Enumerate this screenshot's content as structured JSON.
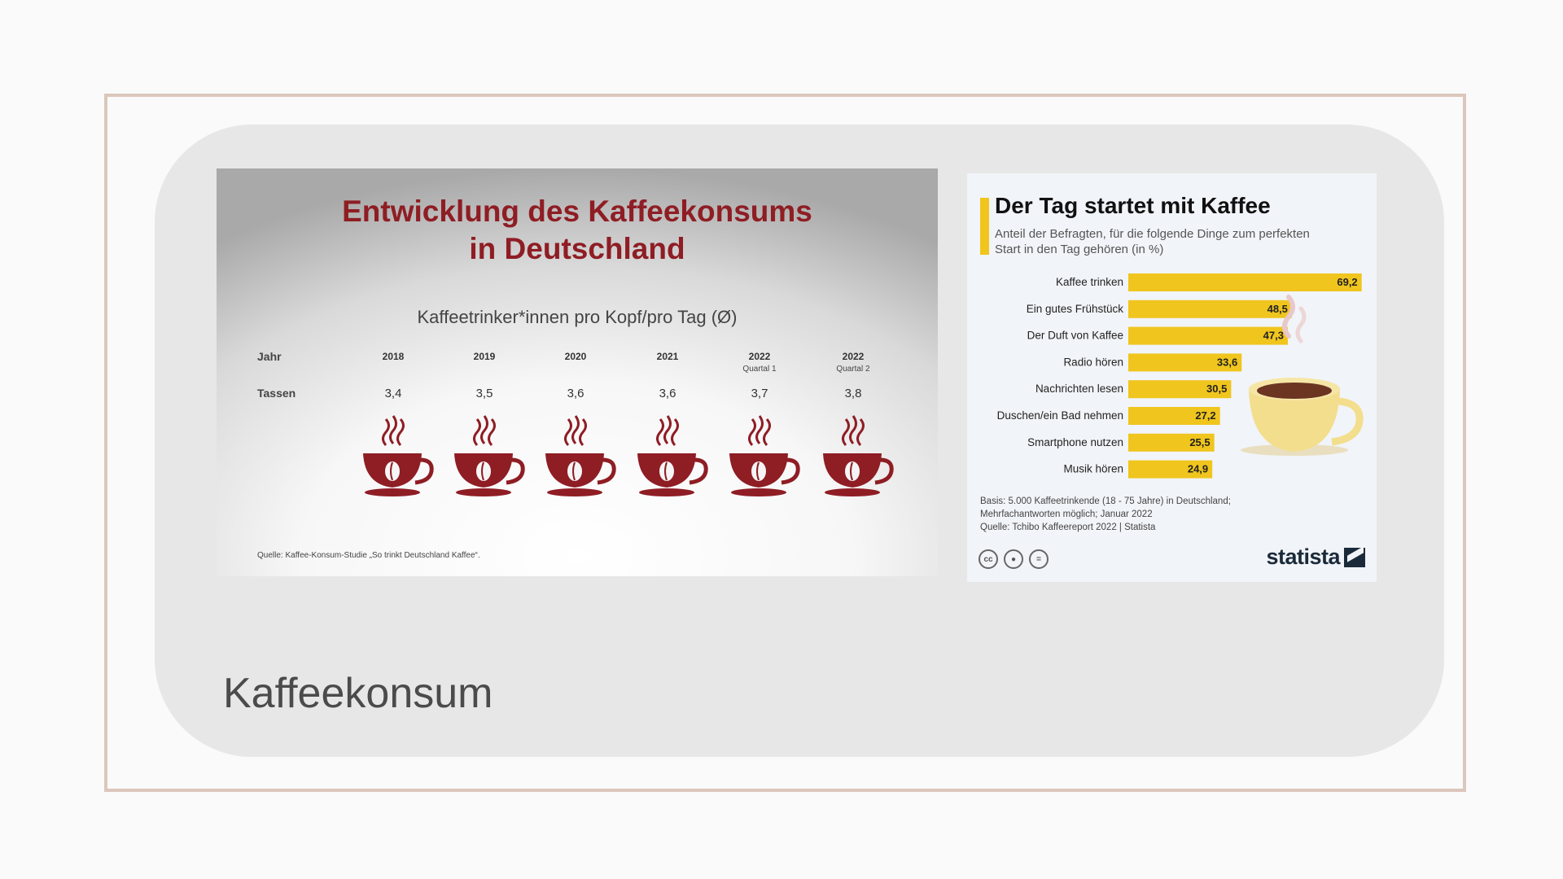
{
  "slide": {
    "title": "Kaffeekonsum"
  },
  "left_chart": {
    "title": "Entwicklung des Kaffeekonsums\nin Deutschland",
    "subtitle": "Kaffeetrinker*innen pro Kopf/pro Tag (Ø)",
    "row_labels": {
      "year": "Jahr",
      "cups": "Tassen"
    },
    "source": "Quelle: Kaffee-Konsum-Studie „So trinkt Deutschland Kaffee“.",
    "colors": {
      "title": "#8f1d24",
      "cup": "#8f1d24"
    },
    "icon": "coffee-cup-icon"
  },
  "right_chart": {
    "title": "Der Tag startet mit Kaffee",
    "subtitle": "Anteil der Befragten, für die folgende Dinge zum perfekten Start in den Tag gehören (in %)",
    "note_lines": [
      "Basis: 5.000 Kaffeetrinkende (18 - 75 Jahre) in Deutschland;",
      "Mehrfachantworten möglich; Januar 2022",
      "Quelle: Tchibo Kaffeereport 2022 | Statista"
    ],
    "cc_icons": [
      "cc",
      "by",
      "nd"
    ],
    "logo_text": "statista",
    "colors": {
      "bar": "#f0c51d",
      "accent": "#f0c51d"
    }
  },
  "chart_data": [
    {
      "type": "table",
      "title": "Entwicklung des Kaffeekonsums in Deutschland",
      "subtitle": "Kaffeetrinker*innen pro Kopf/pro Tag (Ø)",
      "categories": [
        {
          "year": "2018",
          "sub": ""
        },
        {
          "year": "2019",
          "sub": ""
        },
        {
          "year": "2020",
          "sub": ""
        },
        {
          "year": "2021",
          "sub": ""
        },
        {
          "year": "2022",
          "sub": "Quartal 1"
        },
        {
          "year": "2022",
          "sub": "Quartal 2"
        }
      ],
      "values": [
        "3,4",
        "3,5",
        "3,6",
        "3,6",
        "3,7",
        "3,8"
      ]
    },
    {
      "type": "bar",
      "orientation": "horizontal",
      "title": "Der Tag startet mit Kaffee",
      "categories": [
        "Kaffee trinken",
        "Ein gutes Frühstück",
        "Der Duft von Kaffee",
        "Radio hören",
        "Nachrichten lesen",
        "Duschen/ein Bad nehmen",
        "Smartphone nutzen",
        "Musik hören"
      ],
      "values": [
        69.2,
        48.5,
        47.3,
        33.6,
        30.5,
        27.2,
        25.5,
        24.9
      ],
      "value_labels": [
        "69,2",
        "48,5",
        "47,3",
        "33,6",
        "30,5",
        "27,2",
        "25,5",
        "24,9"
      ],
      "xlim": [
        0,
        70
      ],
      "grid": false
    }
  ]
}
